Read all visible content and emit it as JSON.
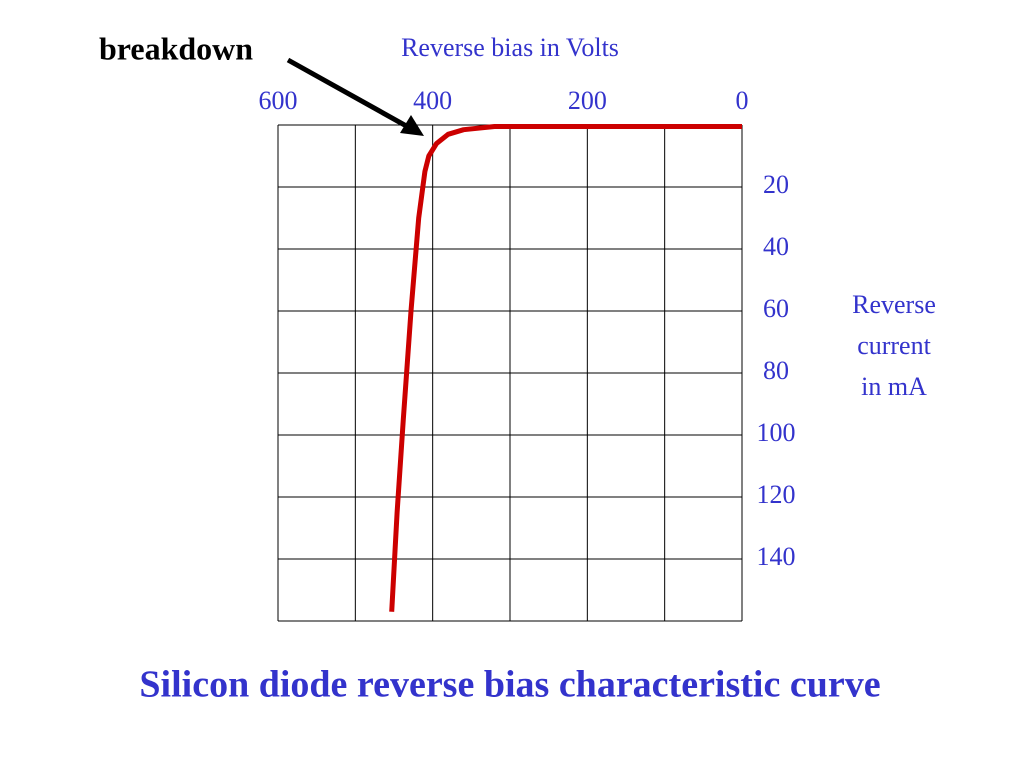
{
  "chart_data": {
    "type": "line",
    "title": "Silicon diode reverse bias characteristic curve",
    "x_label": "Reverse bias in Volts",
    "y_label_lines": [
      "Reverse",
      "current",
      "in mA"
    ],
    "annotation": "breakdown",
    "x": [
      0,
      200,
      320,
      360,
      380,
      395,
      405,
      410,
      418,
      428,
      438,
      446,
      453
    ],
    "values": [
      0.5,
      0.5,
      0.5,
      1.5,
      3,
      6,
      10,
      15,
      30,
      60,
      95,
      125,
      157
    ],
    "color": "#cc0000",
    "xlim": [
      600,
      0
    ],
    "xticks": [
      600,
      400,
      200,
      0
    ],
    "xgrid": [
      600,
      500,
      400,
      300,
      200,
      100,
      0
    ],
    "ylim": [
      0,
      160
    ],
    "yticks": [
      20,
      40,
      60,
      80,
      100,
      120,
      140
    ],
    "ygrid": [
      0,
      20,
      40,
      60,
      80,
      100,
      120,
      140,
      160
    ],
    "grid": true
  }
}
